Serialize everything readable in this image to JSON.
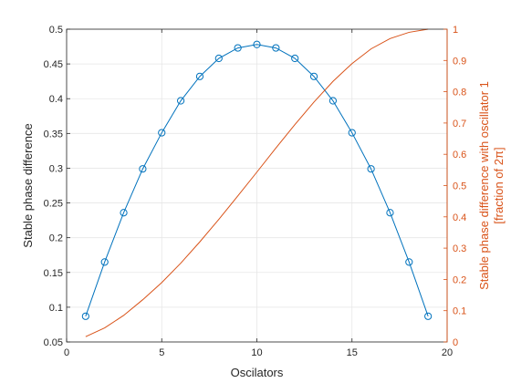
{
  "chart_data": {
    "type": "line",
    "title": "",
    "xlabel": "Oscilators",
    "ylabel_left": "Stable phase difference",
    "ylabel_right_line1": "Stable phase difference with oscillator 1",
    "ylabel_right_line2": "[fraction of 2π]",
    "xlim": [
      0,
      20
    ],
    "ylim_left": [
      0.05,
      0.5
    ],
    "ylim_right": [
      0,
      1
    ],
    "xticks": [
      0,
      5,
      10,
      15,
      20
    ],
    "xtick_labels": [
      "0",
      "5",
      "10",
      "15",
      "20"
    ],
    "yticks_left": [
      0.05,
      0.1,
      0.15,
      0.2,
      0.25,
      0.3,
      0.35,
      0.4,
      0.45,
      0.5
    ],
    "ytick_labels_left": [
      "0.05",
      "0.1",
      "0.15",
      "0.2",
      "0.25",
      "0.3",
      "0.35",
      "0.4",
      "0.45",
      "0.5"
    ],
    "yticks_right": [
      0,
      0.1,
      0.2,
      0.3,
      0.4,
      0.5,
      0.6,
      0.7,
      0.8,
      0.9,
      1
    ],
    "ytick_labels_right": [
      "0",
      "0.1",
      "0.2",
      "0.3",
      "0.4",
      "0.5",
      "0.6",
      "0.7",
      "0.8",
      "0.9",
      "1"
    ],
    "grid": true,
    "series": [
      {
        "axis": "left",
        "marker": "circle",
        "color": "#0072bd",
        "x": [
          1,
          2,
          3,
          4,
          5,
          6,
          7,
          8,
          9,
          10,
          11,
          12,
          13,
          14,
          15,
          16,
          17,
          18,
          19
        ],
        "y": [
          0.087,
          0.165,
          0.236,
          0.299,
          0.351,
          0.397,
          0.432,
          0.458,
          0.473,
          0.478,
          0.473,
          0.458,
          0.432,
          0.397,
          0.351,
          0.299,
          0.236,
          0.165,
          0.087
        ]
      },
      {
        "axis": "right",
        "marker": "none",
        "color": "#d95319",
        "x": [
          1,
          2,
          3,
          4,
          5,
          6,
          7,
          8,
          9,
          10,
          11,
          12,
          13,
          14,
          15,
          16,
          17,
          18,
          19
        ],
        "y": [
          0.017,
          0.045,
          0.085,
          0.135,
          0.19,
          0.252,
          0.32,
          0.392,
          0.467,
          0.543,
          0.62,
          0.695,
          0.767,
          0.833,
          0.89,
          0.937,
          0.97,
          0.99,
          1.0
        ]
      }
    ]
  }
}
